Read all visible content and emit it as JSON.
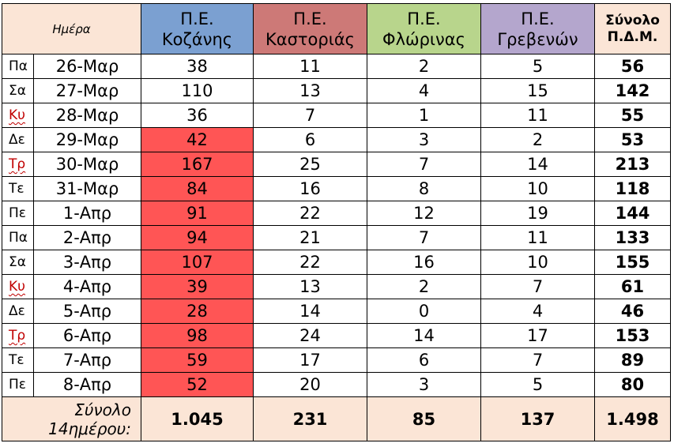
{
  "chart_data": {
    "type": "table",
    "header": {
      "day_date": "Ημέρα",
      "columns": [
        {
          "key": "koz",
          "line1": "Π.Ε.",
          "line2": "Κοζάνης"
        },
        {
          "key": "kas",
          "line1": "Π.Ε.",
          "line2": "Καστοριάς"
        },
        {
          "key": "flo",
          "line1": "Π.Ε.",
          "line2": "Φλώρινας"
        },
        {
          "key": "gre",
          "line1": "Π.Ε.",
          "line2": "Γρεβενών"
        },
        {
          "key": "tot",
          "line1": "Σύνολο",
          "line2": "Π.Δ.Μ."
        }
      ]
    },
    "rows": [
      {
        "day": "Πα",
        "date": "26-Μαρ",
        "koz": 38,
        "kas": 11,
        "flo": 2,
        "gre": 5,
        "tot": 56,
        "weekend_flag": false,
        "koz_highlight": false
      },
      {
        "day": "Σα",
        "date": "27-Μαρ",
        "koz": 110,
        "kas": 13,
        "flo": 4,
        "gre": 15,
        "tot": 142,
        "weekend_flag": false,
        "koz_highlight": false
      },
      {
        "day": "Κυ",
        "date": "28-Μαρ",
        "koz": 36,
        "kas": 7,
        "flo": 1,
        "gre": 11,
        "tot": 55,
        "weekend_flag": true,
        "koz_highlight": false
      },
      {
        "day": "Δε",
        "date": "29-Μαρ",
        "koz": 42,
        "kas": 6,
        "flo": 3,
        "gre": 2,
        "tot": 53,
        "weekend_flag": false,
        "koz_highlight": true
      },
      {
        "day": "Τρ",
        "date": "30-Μαρ",
        "koz": 167,
        "kas": 25,
        "flo": 7,
        "gre": 14,
        "tot": 213,
        "weekend_flag": true,
        "koz_highlight": true
      },
      {
        "day": "Τε",
        "date": "31-Μαρ",
        "koz": 84,
        "kas": 16,
        "flo": 8,
        "gre": 10,
        "tot": 118,
        "weekend_flag": false,
        "koz_highlight": true
      },
      {
        "day": "Πε",
        "date": "1-Απρ",
        "koz": 91,
        "kas": 22,
        "flo": 12,
        "gre": 19,
        "tot": 144,
        "weekend_flag": false,
        "koz_highlight": true
      },
      {
        "day": "Πα",
        "date": "2-Απρ",
        "koz": 94,
        "kas": 21,
        "flo": 7,
        "gre": 11,
        "tot": 133,
        "weekend_flag": false,
        "koz_highlight": true
      },
      {
        "day": "Σα",
        "date": "3-Απρ",
        "koz": 107,
        "kas": 22,
        "flo": 16,
        "gre": 10,
        "tot": 155,
        "weekend_flag": false,
        "koz_highlight": true
      },
      {
        "day": "Κυ",
        "date": "4-Απρ",
        "koz": 39,
        "kas": 13,
        "flo": 2,
        "gre": 7,
        "tot": 61,
        "weekend_flag": true,
        "koz_highlight": true
      },
      {
        "day": "Δε",
        "date": "5-Απρ",
        "koz": 28,
        "kas": 14,
        "flo": 0,
        "gre": 4,
        "tot": 46,
        "weekend_flag": false,
        "koz_highlight": true
      },
      {
        "day": "Τρ",
        "date": "6-Απρ",
        "koz": 98,
        "kas": 24,
        "flo": 14,
        "gre": 17,
        "tot": 153,
        "weekend_flag": true,
        "koz_highlight": true
      },
      {
        "day": "Τε",
        "date": "7-Απρ",
        "koz": 59,
        "kas": 17,
        "flo": 6,
        "gre": 7,
        "tot": 89,
        "weekend_flag": false,
        "koz_highlight": true
      },
      {
        "day": "Πε",
        "date": "8-Απρ",
        "koz": 52,
        "kas": 20,
        "flo": 3,
        "gre": 5,
        "tot": 80,
        "weekend_flag": false,
        "koz_highlight": true
      }
    ],
    "footer": {
      "label_line1": "Σύνολο",
      "label_line2": "14ημέρου:",
      "koz": "1.045",
      "kas": "231",
      "flo": "85",
      "gre": "137",
      "tot": "1.498"
    },
    "colors": {
      "koz_header": "#7ba0d1",
      "kas_header": "#cd7977",
      "flo_header": "#b8d58c",
      "gre_header": "#b4a6cd",
      "total_header": "#fbe5d6",
      "highlight_cell": "#ff5555",
      "flagged_day_text": "#c00000"
    }
  }
}
